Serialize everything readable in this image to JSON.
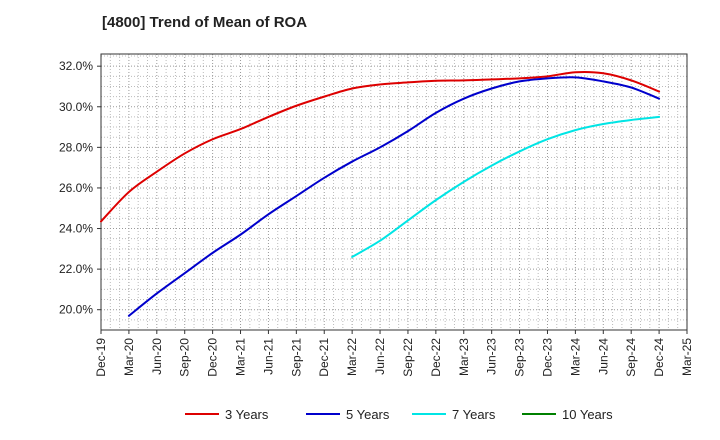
{
  "chart_data": {
    "type": "line",
    "title": "[4800]  Trend of Mean of ROA",
    "xlabel": "",
    "ylabel": "",
    "x_ticks": [
      "Dec-19",
      "Mar-20",
      "Jun-20",
      "Sep-20",
      "Dec-20",
      "Mar-21",
      "Jun-21",
      "Sep-21",
      "Dec-21",
      "Mar-22",
      "Jun-22",
      "Sep-22",
      "Dec-22",
      "Mar-23",
      "Jun-23",
      "Sep-23",
      "Dec-23",
      "Mar-24",
      "Jun-24",
      "Sep-24",
      "Dec-24",
      "Mar-25"
    ],
    "y_ticks": [
      "20.0%",
      "22.0%",
      "24.0%",
      "26.0%",
      "28.0%",
      "30.0%",
      "32.0%"
    ],
    "y_tick_values": [
      20,
      22,
      24,
      26,
      28,
      30,
      32
    ],
    "ylim": [
      19.0,
      32.6
    ],
    "grid": true,
    "legend_position": "bottom",
    "series": [
      {
        "name": "3 Years",
        "color": "#dd0000",
        "start_index": 0,
        "values": [
          24.35,
          25.8,
          26.8,
          27.7,
          28.4,
          28.9,
          29.5,
          30.05,
          30.5,
          30.9,
          31.1,
          31.2,
          31.28,
          31.3,
          31.35,
          31.4,
          31.5,
          31.7,
          31.65,
          31.3,
          30.75
        ]
      },
      {
        "name": "5 Years",
        "color": "#0000cc",
        "start_index": 1,
        "values": [
          19.7,
          20.8,
          21.8,
          22.8,
          23.7,
          24.7,
          25.6,
          26.5,
          27.3,
          28.0,
          28.8,
          29.7,
          30.4,
          30.9,
          31.25,
          31.4,
          31.45,
          31.25,
          30.95,
          30.4
        ]
      },
      {
        "name": "7 Years",
        "color": "#00e5e5",
        "start_index": 9,
        "values": [
          22.6,
          23.4,
          24.4,
          25.4,
          26.3,
          27.1,
          27.8,
          28.4,
          28.85,
          29.15,
          29.35,
          29.5
        ]
      },
      {
        "name": "10 Years",
        "color": "#008000",
        "start_index": 0,
        "values": []
      }
    ]
  }
}
